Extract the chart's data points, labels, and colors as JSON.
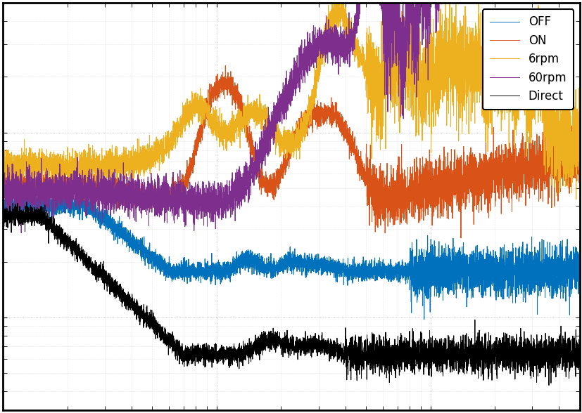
{
  "legend_labels": [
    "OFF",
    "ON",
    "6rpm",
    "60rpm",
    "Direct"
  ],
  "colors": [
    "#0072BD",
    "#D95319",
    "#EDB120",
    "#7E2F8E",
    "#000000"
  ],
  "background_color": "#ffffff",
  "grid_color": "#c0c0c0",
  "legend_loc": "upper right",
  "xlim": [
    1,
    500
  ],
  "seed": 42
}
